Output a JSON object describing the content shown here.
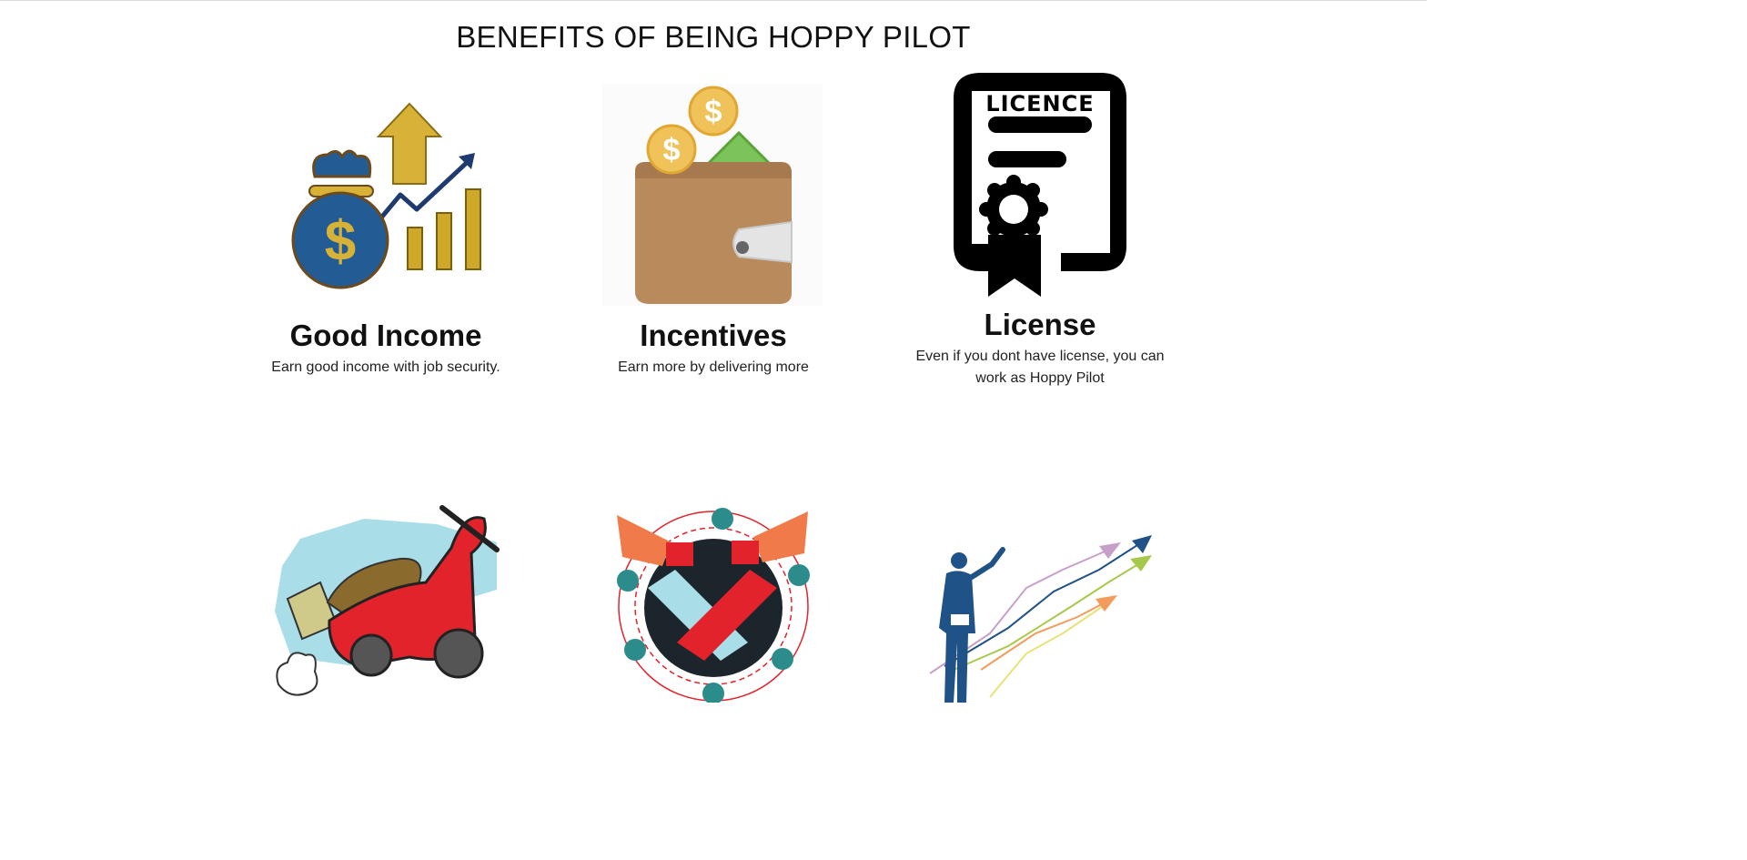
{
  "section": {
    "title": "BENEFITS OF BEING HOPPY PILOT"
  },
  "benefits": [
    {
      "title": "Good Income",
      "description": "Earn good income with job security.",
      "icon": "money-bag-growth-icon"
    },
    {
      "title": "Incentives",
      "description": "Earn more by delivering more",
      "icon": "wallet-coins-icon"
    },
    {
      "title": "License",
      "description": "Even if you dont have license, you can work as Hoppy Pilot",
      "icon": "licence-certificate-icon"
    }
  ],
  "licence_icon_text": "LICENCE",
  "illustrations": [
    {
      "icon": "delivery-scooter-icon"
    },
    {
      "icon": "community-megaphone-icon"
    },
    {
      "icon": "businessman-growth-icon"
    }
  ],
  "colors": {
    "gold": "#d7b236",
    "navy": "#1f5286",
    "wallet": "#b98a5c",
    "coin": "#f0c25a",
    "scooter_red": "#e2232b",
    "megaphone_orange": "#f07a4a"
  }
}
